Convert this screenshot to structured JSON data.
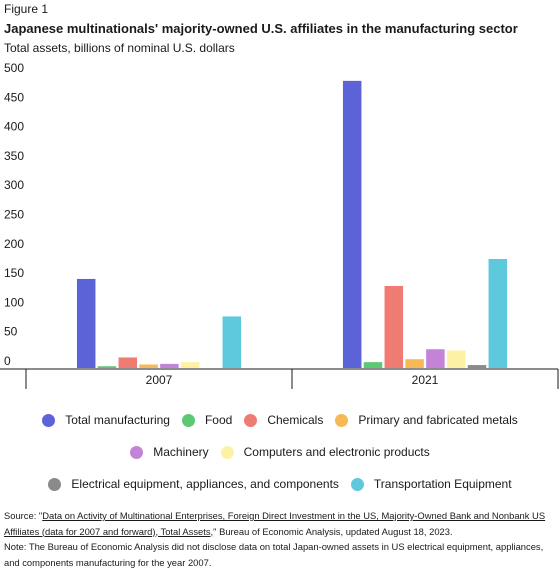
{
  "figure_label": "Figure 1",
  "title": "Japanese multinationals' majority-owned U.S. affiliates in the manufacturing sector",
  "subtitle": "Total assets, billions of nominal U.S. dollars",
  "source": {
    "prefix": "Source: \"",
    "link_text": "Data on Activity of Multinational Enterprises, Foreign Direct Investment in the US, Majority-Owned Bank and Nonbank US Affiliates (data for 2007 and forward), Total Assets,",
    "suffix": "\" Bureau of Economic Analysis, updated August 18, 2023.",
    "note": "Note: The Bureau of Economic Analysis did not disclose data on total Japan-owned assets in US electrical equipment, appliances, and components manufacturing for the year 2007."
  },
  "legend_rows": [
    [
      0,
      1,
      2,
      3
    ],
    [
      4,
      5
    ],
    [
      6,
      7
    ]
  ],
  "chart_data": {
    "type": "bar",
    "title": "Japanese multinationals' majority-owned U.S. affiliates in the manufacturing sector",
    "subtitle": "Total assets, billions of nominal U.S. dollars",
    "categories": [
      "2007",
      "2021"
    ],
    "ylim": [
      0,
      500
    ],
    "yticks": [
      0,
      50,
      100,
      150,
      200,
      250,
      300,
      350,
      400,
      450,
      500
    ],
    "grid": false,
    "legend_position": "bottom",
    "series": [
      {
        "name": "Total manufacturing",
        "color": "#5b63d6",
        "values": [
          152,
          490
        ]
      },
      {
        "name": "Food",
        "color": "#5cc775",
        "values": [
          3,
          10
        ]
      },
      {
        "name": "Chemicals",
        "color": "#f07b72",
        "values": [
          18,
          140
        ]
      },
      {
        "name": "Primary and fabricated metals",
        "color": "#f7b955",
        "values": [
          6,
          15
        ]
      },
      {
        "name": "Machinery",
        "color": "#c283d9",
        "values": [
          7,
          32
        ]
      },
      {
        "name": "Computers and electronic products",
        "color": "#fdf2a4",
        "values": [
          10,
          30
        ]
      },
      {
        "name": "Electrical equipment, appliances, and components",
        "color": "#8a8a8a",
        "values": [
          null,
          5
        ]
      },
      {
        "name": "Transportation Equipment",
        "color": "#5ec9dc",
        "values": [
          88,
          186
        ]
      }
    ]
  }
}
